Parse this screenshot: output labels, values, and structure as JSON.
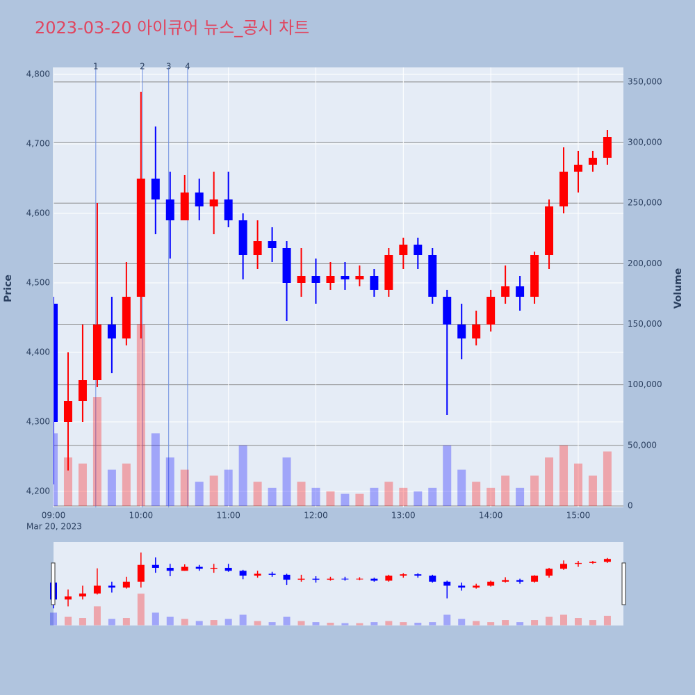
{
  "chart_data": {
    "type": "candlestick",
    "title": "2023-03-20 아이큐어 뉴스_공시 차트",
    "yaxis_title": "Price",
    "y2axis_title": "Volume",
    "x_date_label": "Mar 20, 2023",
    "increasing_color": "#ff0000",
    "decreasing_color": "#0000ff",
    "x": [
      "09:00",
      "09:10",
      "09:20",
      "09:30",
      "09:40",
      "09:50",
      "10:00",
      "10:10",
      "10:20",
      "10:30",
      "10:40",
      "10:50",
      "11:00",
      "11:10",
      "11:20",
      "11:30",
      "11:40",
      "11:50",
      "12:00",
      "12:10",
      "12:20",
      "12:30",
      "12:40",
      "12:50",
      "13:00",
      "13:10",
      "13:20",
      "13:30",
      "13:40",
      "13:50",
      "14:00",
      "14:10",
      "14:20",
      "14:30",
      "14:40",
      "14:50",
      "15:00",
      "15:10",
      "15:20"
    ],
    "open": [
      4470,
      4300,
      4330,
      4360,
      4440,
      4420,
      4480,
      4650,
      4620,
      4590,
      4630,
      4610,
      4620,
      4590,
      4540,
      4560,
      4550,
      4500,
      4510,
      4500,
      4510,
      4505,
      4510,
      4490,
      4540,
      4555,
      4540,
      4480,
      4440,
      4420,
      4440,
      4480,
      4495,
      4480,
      4540,
      4610,
      4660,
      4670,
      4680
    ],
    "high": [
      4480,
      4400,
      4440,
      4615,
      4480,
      4530,
      4775,
      4725,
      4660,
      4655,
      4650,
      4660,
      4660,
      4600,
      4590,
      4580,
      4560,
      4550,
      4535,
      4530,
      4530,
      4525,
      4520,
      4550,
      4565,
      4565,
      4550,
      4490,
      4470,
      4460,
      4490,
      4525,
      4510,
      4545,
      4620,
      4695,
      4690,
      4690,
      4720
    ],
    "low": [
      4210,
      4230,
      4300,
      4350,
      4370,
      4410,
      4420,
      4570,
      4535,
      4590,
      4590,
      4570,
      4580,
      4505,
      4520,
      4530,
      4445,
      4480,
      4470,
      4490,
      4490,
      4495,
      4480,
      4480,
      4520,
      4520,
      4470,
      4310,
      4390,
      4410,
      4430,
      4470,
      4460,
      4470,
      4520,
      4600,
      4630,
      4660,
      4670
    ],
    "close": [
      4300,
      4330,
      4360,
      4440,
      4420,
      4480,
      4650,
      4620,
      4590,
      4630,
      4610,
      4620,
      4590,
      4540,
      4560,
      4550,
      4500,
      4510,
      4500,
      4510,
      4505,
      4510,
      4490,
      4540,
      4555,
      4540,
      4480,
      4440,
      4420,
      4440,
      4480,
      4495,
      4480,
      4540,
      4610,
      4660,
      4670,
      4680,
      4710
    ],
    "volume": [
      60000,
      40000,
      35000,
      90000,
      30000,
      35000,
      150000,
      60000,
      40000,
      30000,
      20000,
      25000,
      30000,
      50000,
      20000,
      15000,
      40000,
      20000,
      15000,
      12000,
      10000,
      10000,
      15000,
      20000,
      15000,
      12000,
      15000,
      50000,
      30000,
      20000,
      15000,
      25000,
      15000,
      25000,
      40000,
      50000,
      35000,
      25000,
      45000
    ],
    "ylim": [
      4177,
      4810
    ],
    "yticks": [
      {
        "value": 4200,
        "label": "4,200"
      },
      {
        "value": 4300,
        "label": "4,300"
      },
      {
        "value": 4400,
        "label": "4,400"
      },
      {
        "value": 4500,
        "label": "4,500"
      },
      {
        "value": 4600,
        "label": "4,600"
      },
      {
        "value": 4700,
        "label": "4,700"
      },
      {
        "value": 4800,
        "label": "4,800"
      }
    ],
    "y2lim": [
      -1150,
      362000
    ],
    "y2ticks": [
      0,
      {
        "value": 50000,
        "label": "50,000"
      },
      {
        "value": 100000,
        "label": "100,000"
      },
      {
        "value": 150000,
        "label": "150,000"
      },
      {
        "value": 200000,
        "label": "200,000"
      },
      {
        "value": 250000,
        "label": "250,000"
      },
      {
        "value": 300000,
        "label": "300,000"
      },
      {
        "value": 350000,
        "label": "350,000"
      }
    ],
    "xlim": [
      "09:00",
      "15:31"
    ],
    "xticks": [
      "09:00",
      "10:00",
      "11:00",
      "12:00",
      "13:00",
      "14:00",
      "15:00"
    ],
    "annotations": [
      {
        "x": "09:29",
        "text": "1"
      },
      {
        "x": "10:01",
        "text": "2"
      },
      {
        "x": "10:19",
        "text": "3"
      },
      {
        "x": "10:32",
        "text": "4"
      }
    ],
    "rangeslider": true
  }
}
